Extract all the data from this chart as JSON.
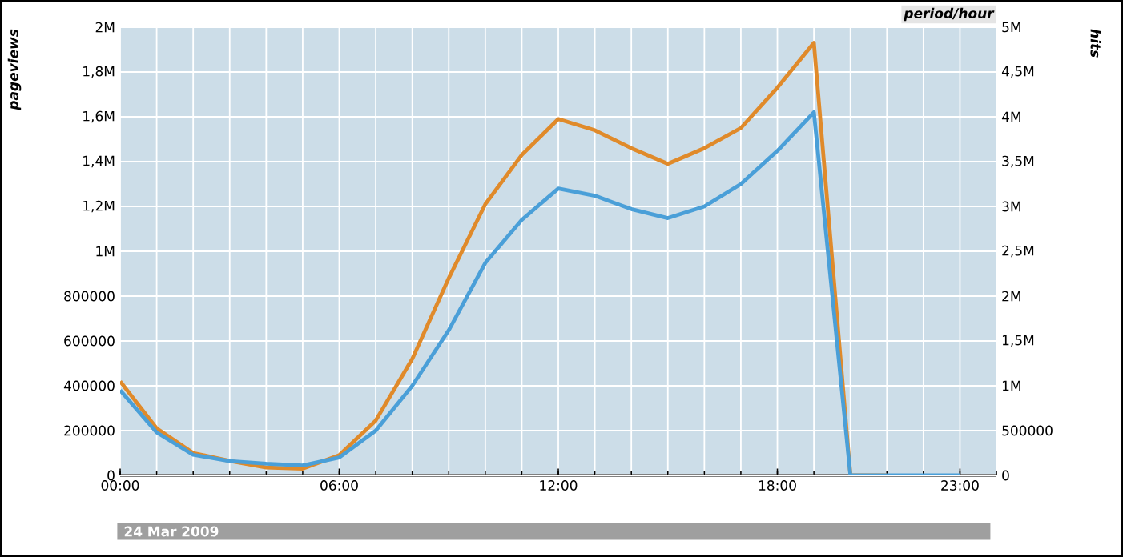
{
  "chart_data": {
    "type": "line",
    "ylabel": "pageviews",
    "y2label": "hits",
    "annotations": [
      "period/hour",
      "24 Mar 2009"
    ],
    "x": [
      0,
      1,
      2,
      3,
      4,
      5,
      6,
      7,
      8,
      9,
      10,
      11,
      12,
      13,
      14,
      15,
      16,
      17,
      18,
      19,
      20,
      21,
      22,
      23
    ],
    "xlim": [
      0,
      24
    ],
    "xticks": [
      {
        "value": 0,
        "label": "00:00"
      },
      {
        "value": 6,
        "label": "06:00"
      },
      {
        "value": 12,
        "label": "12:00"
      },
      {
        "value": 18,
        "label": "18:00"
      },
      {
        "value": 23,
        "label": "23:00"
      }
    ],
    "ylim": [
      0,
      2000000
    ],
    "yticks": [
      0,
      200000,
      400000,
      600000,
      800000,
      {
        "value": 1000000,
        "label": "1M"
      },
      {
        "value": 1200000,
        "label": "1,2M"
      },
      {
        "value": 1400000,
        "label": "1,4M"
      },
      {
        "value": 1600000,
        "label": "1,6M"
      },
      {
        "value": 1800000,
        "label": "1,8M"
      },
      {
        "value": 2000000,
        "label": "2M"
      }
    ],
    "y2lim": [
      0,
      5000000
    ],
    "y2ticks": [
      0,
      500000,
      {
        "value": 1000000,
        "label": "1M"
      },
      {
        "value": 1500000,
        "label": "1,5M"
      },
      {
        "value": 2000000,
        "label": "2M"
      },
      {
        "value": 2500000,
        "label": "2,5M"
      },
      {
        "value": 3000000,
        "label": "3M"
      },
      {
        "value": 3500000,
        "label": "3,5M"
      },
      {
        "value": 4000000,
        "label": "4M"
      },
      {
        "value": 4500000,
        "label": "4,5M"
      },
      {
        "value": 5000000,
        "label": "5M"
      }
    ],
    "grid": true,
    "series": [
      {
        "color": "#e08a2a",
        "axis": "y",
        "values": [
          420000,
          210000,
          100000,
          65000,
          35000,
          30000,
          90000,
          245000,
          520000,
          880000,
          1210000,
          1430000,
          1590000,
          1540000,
          1460000,
          1390000,
          1460000,
          1550000,
          1730000,
          1930000,
          0,
          0,
          null,
          null
        ]
      },
      {
        "color": "#4a9fd8",
        "axis": "y2",
        "values": [
          950000,
          480000,
          230000,
          160000,
          130000,
          110000,
          200000,
          500000,
          1000000,
          1620000,
          2370000,
          2850000,
          3200000,
          3120000,
          2970000,
          2870000,
          3000000,
          3250000,
          3620000,
          4050000,
          0,
          0,
          0,
          0
        ]
      }
    ]
  }
}
